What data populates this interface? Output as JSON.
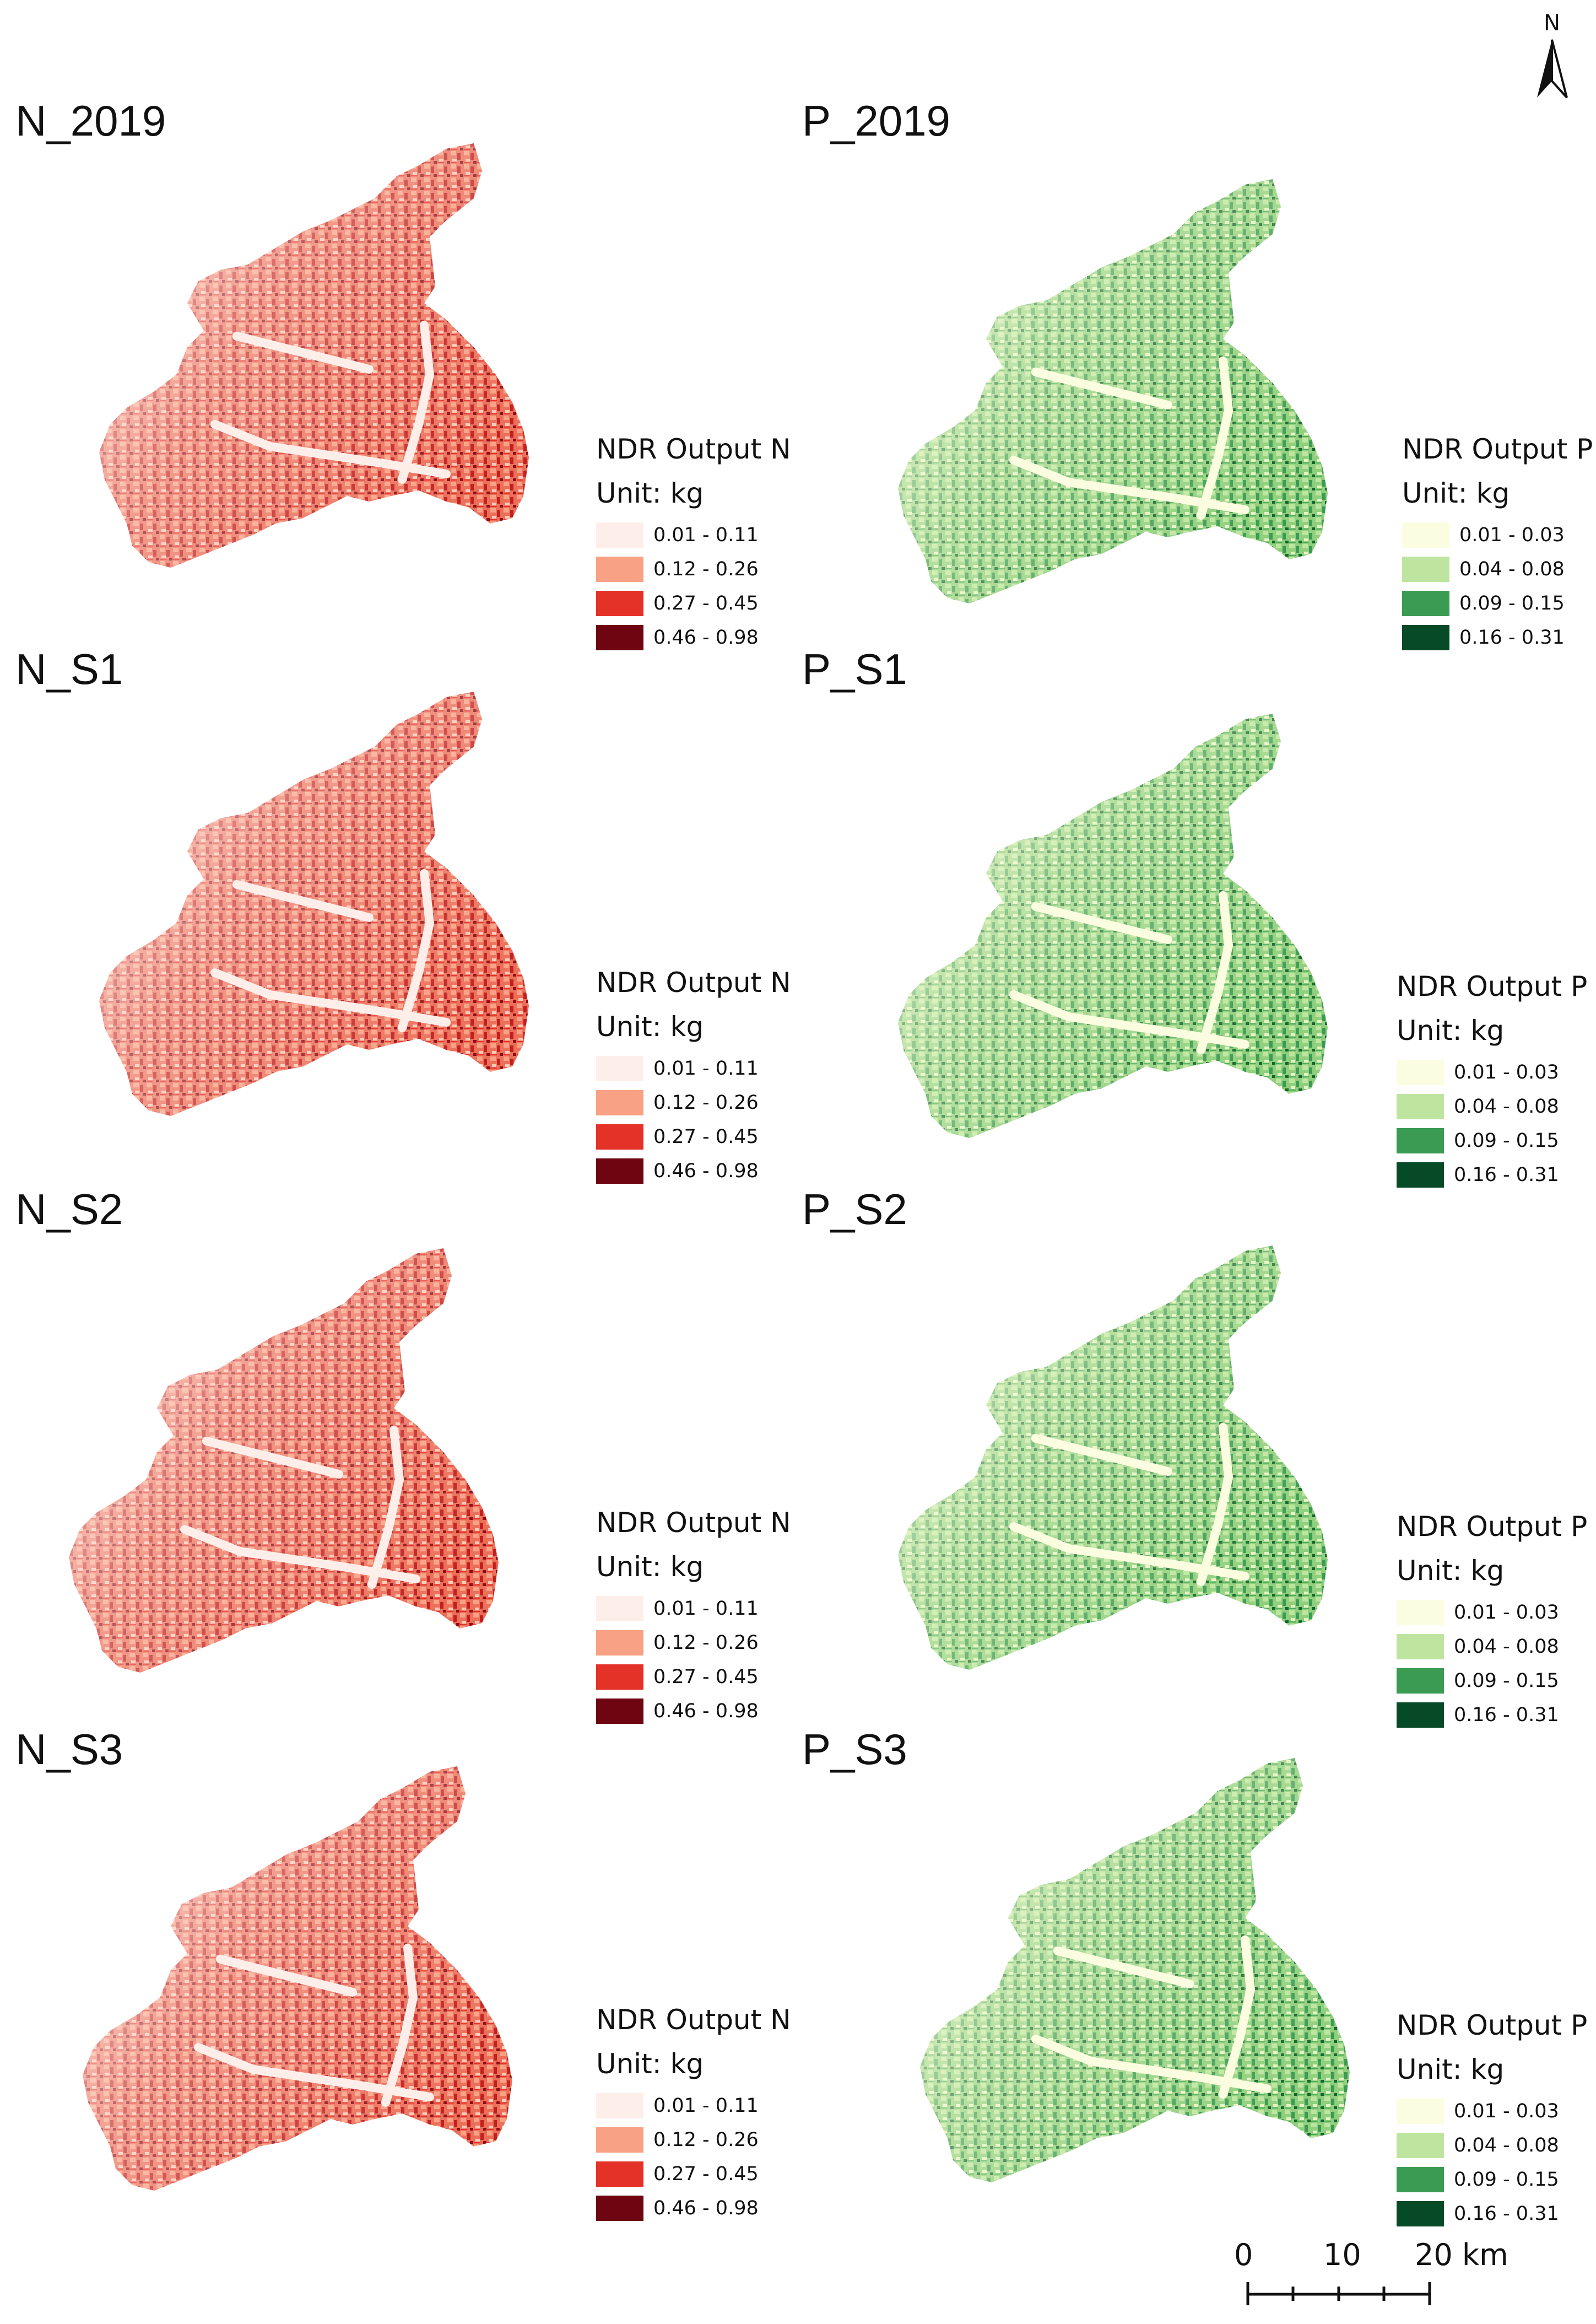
{
  "north_arrow": {
    "label": "N"
  },
  "scale_bar": {
    "labels": [
      "0",
      "10",
      "20 km"
    ]
  },
  "panels": [
    {
      "title": "N_2019",
      "variable": "N",
      "legend": {
        "title": "NDR Output N",
        "unit": "Unit: kg",
        "classes": [
          {
            "label": "0.01 - 0.11",
            "color": "#fdeeea"
          },
          {
            "label": "0.12 - 0.26",
            "color": "#f9a184"
          },
          {
            "label": "0.27 - 0.45",
            "color": "#e53228"
          },
          {
            "label": "0.46 - 0.98",
            "color": "#6e0510"
          }
        ]
      }
    },
    {
      "title": "P_2019",
      "variable": "P",
      "legend": {
        "title": "NDR Output P",
        "unit": "Unit: kg",
        "classes": [
          {
            "label": "0.01 - 0.03",
            "color": "#fbfde0"
          },
          {
            "label": "0.04 - 0.08",
            "color": "#bde59f"
          },
          {
            "label": "0.09 - 0.15",
            "color": "#3b9b52"
          },
          {
            "label": "0.16 - 0.31",
            "color": "#064a28"
          }
        ]
      }
    },
    {
      "title": "N_S1",
      "variable": "N",
      "legend": {
        "title": "NDR Output N",
        "unit": "Unit: kg",
        "classes": [
          {
            "label": "0.01 - 0.11",
            "color": "#fdeeea"
          },
          {
            "label": "0.12 - 0.26",
            "color": "#f9a184"
          },
          {
            "label": "0.27 - 0.45",
            "color": "#e53228"
          },
          {
            "label": "0.46 - 0.98",
            "color": "#6e0510"
          }
        ]
      }
    },
    {
      "title": "P_S1",
      "variable": "P",
      "legend": {
        "title": "NDR Output P",
        "unit": "Unit: kg",
        "classes": [
          {
            "label": "0.01 - 0.03",
            "color": "#fbfde0"
          },
          {
            "label": "0.04 - 0.08",
            "color": "#bde59f"
          },
          {
            "label": "0.09 - 0.15",
            "color": "#3b9b52"
          },
          {
            "label": "0.16 - 0.31",
            "color": "#064a28"
          }
        ]
      }
    },
    {
      "title": "N_S2",
      "variable": "N",
      "legend": {
        "title": "NDR Output N",
        "unit": "Unit: kg",
        "classes": [
          {
            "label": "0.01 - 0.11",
            "color": "#fdeeea"
          },
          {
            "label": "0.12 - 0.26",
            "color": "#f9a184"
          },
          {
            "label": "0.27 - 0.45",
            "color": "#e53228"
          },
          {
            "label": "0.46 - 0.98",
            "color": "#6e0510"
          }
        ]
      }
    },
    {
      "title": "P_S2",
      "variable": "P",
      "legend": {
        "title": "NDR Output P",
        "unit": "Unit: kg",
        "classes": [
          {
            "label": "0.01 - 0.03",
            "color": "#fbfde0"
          },
          {
            "label": "0.04 - 0.08",
            "color": "#bde59f"
          },
          {
            "label": "0.09 - 0.15",
            "color": "#3b9b52"
          },
          {
            "label": "0.16 - 0.31",
            "color": "#064a28"
          }
        ]
      }
    },
    {
      "title": "N_S3",
      "variable": "N",
      "legend": {
        "title": "NDR Output N",
        "unit": "Unit: kg",
        "classes": [
          {
            "label": "0.01 - 0.11",
            "color": "#fdeeea"
          },
          {
            "label": "0.12 - 0.26",
            "color": "#f9a184"
          },
          {
            "label": "0.27 - 0.45",
            "color": "#e53228"
          },
          {
            "label": "0.46 - 0.98",
            "color": "#6e0510"
          }
        ]
      }
    },
    {
      "title": "P_S3",
      "variable": "P",
      "legend": {
        "title": "NDR Output P",
        "unit": "Unit: kg",
        "classes": [
          {
            "label": "0.01 - 0.03",
            "color": "#fbfde0"
          },
          {
            "label": "0.04 - 0.08",
            "color": "#bde59f"
          },
          {
            "label": "0.09 - 0.15",
            "color": "#3b9b52"
          },
          {
            "label": "0.16 - 0.31",
            "color": "#064a28"
          }
        ]
      }
    }
  ]
}
